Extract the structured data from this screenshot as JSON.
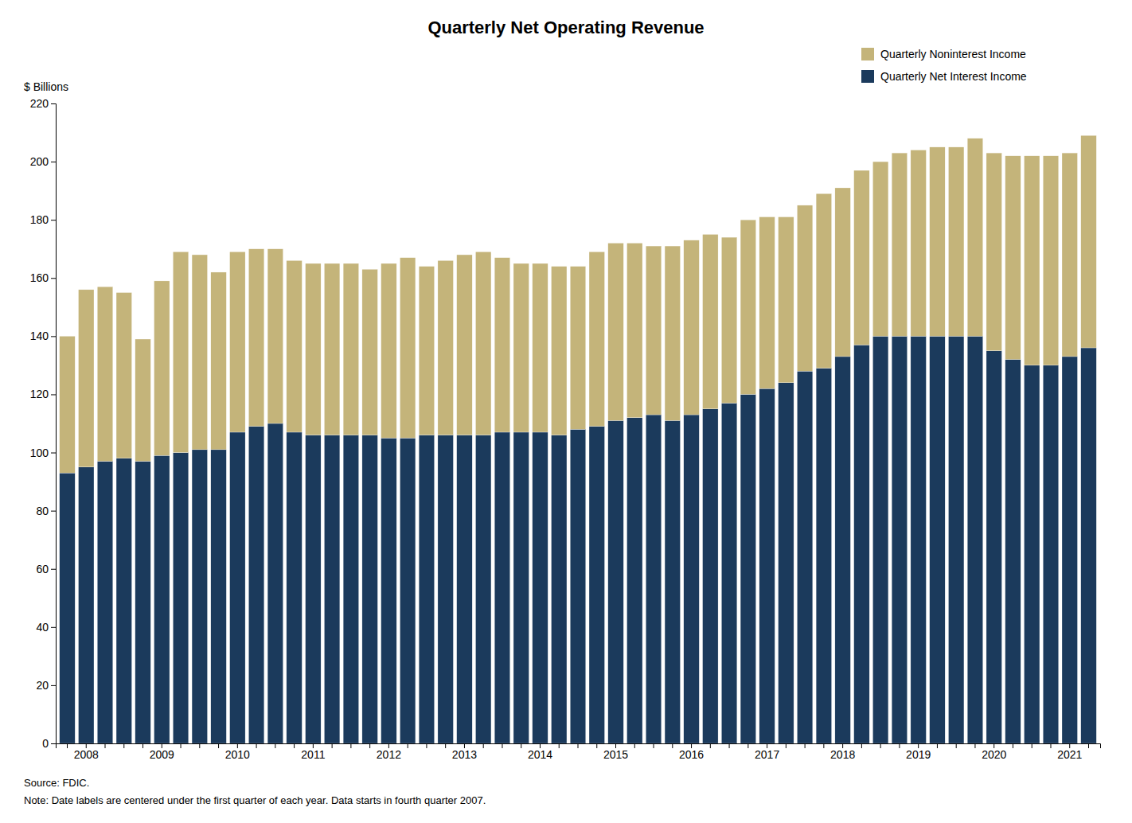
{
  "chart_data": {
    "type": "bar",
    "stacked": true,
    "grid": false,
    "legend": "top-right",
    "title": "Quarterly Net Operating Revenue",
    "y_label": "$ Billions",
    "annotations": [
      "Source: FDIC.",
      "Note: Date labels are centered under the first quarter of each year. Data starts in fourth quarter 2007."
    ],
    "categories": [
      null,
      "2008",
      null,
      null,
      null,
      "2009",
      null,
      null,
      null,
      "2010",
      null,
      null,
      null,
      "2011",
      null,
      null,
      null,
      "2012",
      null,
      null,
      null,
      "2013",
      null,
      null,
      null,
      "2014",
      null,
      null,
      null,
      "2015",
      null,
      null,
      null,
      "2016",
      null,
      null,
      null,
      "2017",
      null,
      null,
      null,
      "2018",
      null,
      null,
      null,
      "2019",
      null,
      null,
      null,
      "2020",
      null,
      null,
      null,
      "2021",
      null
    ],
    "series": [
      {
        "name": "Quarterly Net Interest Income",
        "color": "#1B3A5C",
        "values": [
          93,
          95,
          97,
          98,
          97,
          99,
          100,
          101,
          101,
          107,
          109,
          110,
          107,
          106,
          106,
          106,
          106,
          105,
          105,
          106,
          106,
          106,
          106,
          107,
          107,
          107,
          106,
          108,
          109,
          111,
          112,
          113,
          111,
          113,
          115,
          117,
          120,
          122,
          124,
          128,
          129,
          133,
          137,
          140,
          140,
          140,
          140,
          140,
          140,
          135,
          132,
          130,
          130,
          133,
          136
        ]
      },
      {
        "name": "Quarterly Noninterest Income",
        "color": "#C4B47A",
        "values": [
          47,
          61,
          60,
          57,
          42,
          60,
          69,
          67,
          61,
          62,
          61,
          60,
          59,
          59,
          59,
          59,
          57,
          60,
          62,
          58,
          60,
          62,
          63,
          60,
          58,
          58,
          58,
          56,
          60,
          61,
          60,
          58,
          60,
          60,
          60,
          57,
          60,
          59,
          57,
          57,
          60,
          58,
          60,
          60,
          63,
          64,
          65,
          65,
          68,
          68,
          70,
          72,
          72,
          70,
          73
        ]
      }
    ],
    "ylim": [
      0,
      220
    ],
    "yticks": [
      0,
      20,
      40,
      60,
      80,
      100,
      120,
      140,
      160,
      180,
      200,
      220
    ]
  }
}
